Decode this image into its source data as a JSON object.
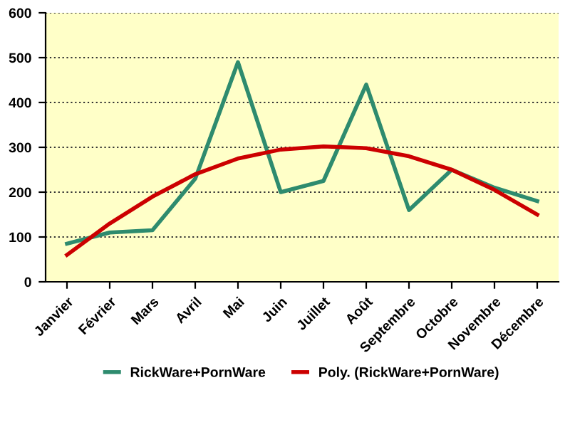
{
  "chart_data": {
    "type": "line",
    "categories": [
      "Janvier",
      "Février",
      "Mars",
      "Avril",
      "Mai",
      "Juin",
      "Juillet",
      "Août",
      "Septembre",
      "Octobre",
      "Novembre",
      "Décembre"
    ],
    "series": [
      {
        "name": "RickWare+PornWare",
        "color": "#2e8b6e",
        "values": [
          85,
          110,
          115,
          230,
          490,
          200,
          225,
          440,
          160,
          250,
          210,
          180
        ]
      },
      {
        "name": "Poly. (RickWare+PornWare)",
        "color": "#cc0000",
        "values": [
          60,
          130,
          190,
          240,
          275,
          295,
          302,
          298,
          280,
          250,
          205,
          150
        ]
      }
    ],
    "ylim": [
      0,
      600
    ],
    "yticks": [
      0,
      100,
      200,
      300,
      400,
      500,
      600
    ],
    "grid": "y",
    "legend": "bottom",
    "marker": "none",
    "line_style": "solid"
  }
}
